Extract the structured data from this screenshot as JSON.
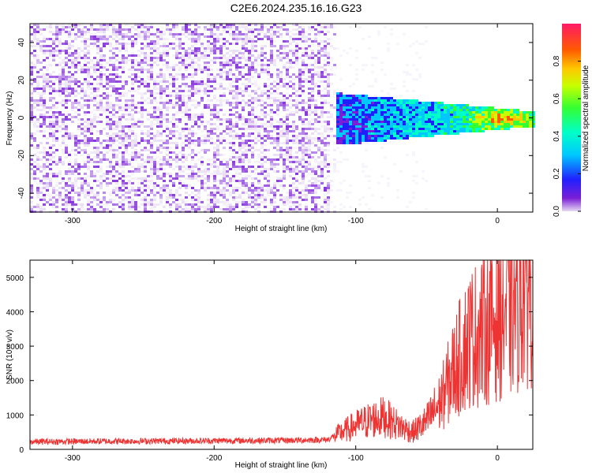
{
  "title": "C2E6.2024.235.16.16.G23",
  "chart_data": [
    {
      "type": "heatmap",
      "xlabel": "Height of straight line (km)",
      "ylabel": "Frequency (Hz)",
      "xlim": [
        -330,
        25
      ],
      "ylim": [
        -50,
        50
      ],
      "xticks": [
        -300,
        -200,
        -100,
        0
      ],
      "yticks": [
        -40,
        -20,
        0,
        20,
        40
      ],
      "colorbar": {
        "label": "Normalized spectral amplitude",
        "ticks": [
          "0.0",
          "0.2",
          "0.4",
          "0.6",
          "0.8"
        ],
        "range": [
          0,
          1
        ]
      },
      "features": {
        "noise_region_x": [
          -330,
          -120
        ],
        "signal_onset_x": -115,
        "signal_center_frequency": 0,
        "signal_peak_x": 0
      }
    },
    {
      "type": "line",
      "xlabel": "Height of straight line (km)",
      "ylabel": "SNR (10 * v/v)",
      "xlim": [
        -330,
        25
      ],
      "ylim": [
        0,
        5500
      ],
      "xticks": [
        -300,
        -200,
        -100,
        0
      ],
      "yticks": [
        0,
        1000,
        2000,
        3000,
        4000,
        5000
      ],
      "color": "#ee3333",
      "x": [
        -330,
        -300,
        -250,
        -200,
        -150,
        -120,
        -110,
        -100,
        -90,
        -80,
        -70,
        -60,
        -50,
        -40,
        -30,
        -20,
        -10,
        0,
        10,
        20,
        25
      ],
      "y": [
        220,
        230,
        240,
        250,
        260,
        280,
        500,
        700,
        850,
        950,
        700,
        500,
        800,
        1400,
        2400,
        3200,
        3500,
        3900,
        4200,
        4800,
        5100
      ]
    }
  ]
}
